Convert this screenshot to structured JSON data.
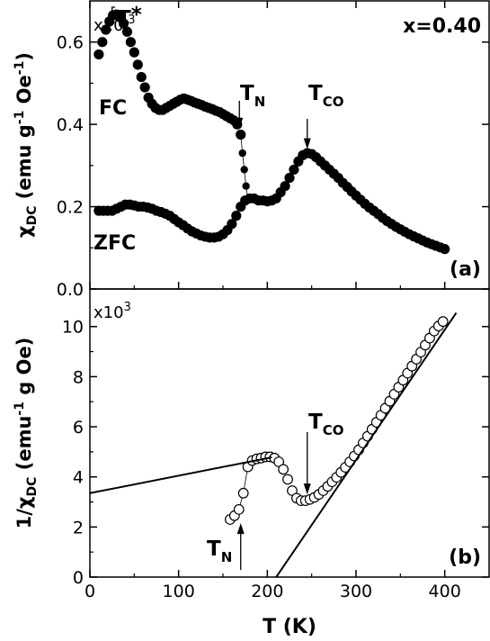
{
  "chart_data": [
    {
      "type": "scatter",
      "panel_label": "(a)",
      "composition": "x=0.40",
      "ylabel": "χDC (emu g-1 Oe-1)",
      "ylabel_parts": {
        "main": "χ",
        "sub": "DC",
        "rest1": " (emu g",
        "sup1": "-1",
        "rest2": " Oe",
        "sup2": "-1",
        "rest3": ")"
      },
      "y_multiplier": "x10-3",
      "y_multiplier_parts": {
        "base": "x10",
        "exp": "-3"
      },
      "xlim": [
        0,
        450
      ],
      "ylim": [
        0.0,
        0.7
      ],
      "yticks": [
        "0.0",
        "0.2",
        "0.4",
        "0.6"
      ],
      "yticks_values": [
        0.0,
        0.2,
        0.4,
        0.6
      ],
      "series": [
        {
          "name": "FC",
          "marker": "filled-circle",
          "x": [
            10,
            14,
            18,
            22,
            26,
            30,
            34,
            38,
            42,
            46,
            50,
            54,
            58,
            62,
            66,
            70,
            74,
            78,
            82,
            86,
            90,
            94,
            98,
            102,
            106,
            110,
            114,
            118,
            122,
            126,
            130,
            134,
            138,
            142,
            146,
            150,
            154,
            158,
            162,
            166,
            170
          ],
          "y": [
            0.57,
            0.6,
            0.63,
            0.65,
            0.665,
            0.667,
            0.66,
            0.645,
            0.625,
            0.6,
            0.575,
            0.545,
            0.515,
            0.49,
            0.465,
            0.45,
            0.44,
            0.435,
            0.435,
            0.44,
            0.445,
            0.45,
            0.455,
            0.46,
            0.463,
            0.46,
            0.457,
            0.453,
            0.45,
            0.447,
            0.443,
            0.44,
            0.437,
            0.433,
            0.43,
            0.425,
            0.42,
            0.415,
            0.41,
            0.4,
            0.375
          ]
        },
        {
          "name": "ZFC",
          "marker": "filled-circle",
          "x": [
            10,
            15,
            20,
            25,
            30,
            35,
            40,
            45,
            50,
            55,
            60,
            65,
            70,
            75,
            80,
            85,
            90,
            95,
            100,
            105,
            110,
            115,
            120,
            125,
            130,
            135,
            140,
            145,
            150,
            155,
            160,
            165,
            170,
            175,
            180,
            185,
            190,
            195,
            200,
            205,
            210,
            215,
            220,
            225,
            230,
            235,
            240,
            245,
            250,
            255,
            260,
            265,
            270,
            275,
            280,
            285,
            290,
            295,
            300,
            305,
            310,
            315,
            320,
            325,
            330,
            335,
            340,
            345,
            350,
            355,
            360,
            365,
            370,
            375,
            380,
            385,
            390,
            395,
            400
          ],
          "y": [
            0.19,
            0.19,
            0.19,
            0.19,
            0.195,
            0.2,
            0.205,
            0.205,
            0.203,
            0.2,
            0.2,
            0.198,
            0.195,
            0.19,
            0.187,
            0.183,
            0.178,
            0.17,
            0.162,
            0.155,
            0.147,
            0.14,
            0.135,
            0.13,
            0.127,
            0.125,
            0.125,
            0.127,
            0.133,
            0.143,
            0.158,
            0.178,
            0.2,
            0.215,
            0.22,
            0.22,
            0.215,
            0.215,
            0.213,
            0.215,
            0.22,
            0.235,
            0.25,
            0.27,
            0.29,
            0.31,
            0.325,
            0.33,
            0.328,
            0.32,
            0.31,
            0.3,
            0.29,
            0.28,
            0.27,
            0.258,
            0.248,
            0.237,
            0.227,
            0.217,
            0.207,
            0.198,
            0.19,
            0.182,
            0.173,
            0.165,
            0.158,
            0.151,
            0.145,
            0.139,
            0.133,
            0.128,
            0.123,
            0.118,
            0.113,
            0.109,
            0.105,
            0.101,
            0.097
          ]
        }
      ],
      "transition_points": {
        "x": [
          170,
          172,
          174,
          176,
          178
        ],
        "y": [
          0.375,
          0.33,
          0.29,
          0.25,
          0.22
        ]
      },
      "annotations": [
        {
          "text": "T*",
          "main": "T",
          "sup": "*",
          "x": 25,
          "y": 0.667
        },
        {
          "text": "TN",
          "main": "T",
          "sub": "N",
          "x": 171,
          "y": 0.375
        },
        {
          "text": "TCO",
          "main": "T",
          "sub": "CO",
          "x": 245,
          "y": 0.33
        }
      ]
    },
    {
      "type": "scatter",
      "panel_label": "(b)",
      "ylabel": "1/χDC (emu-1 g Oe)",
      "ylabel_parts": {
        "main": "1/χ",
        "sub": "DC",
        "rest1": " (emu",
        "sup1": "-1",
        "rest2": " g Oe)"
      },
      "y_multiplier": "x103",
      "y_multiplier_parts": {
        "base": "x10",
        "exp": "3"
      },
      "xlabel": "T (K)",
      "xlim": [
        0,
        450
      ],
      "ylim": [
        0,
        11.5
      ],
      "xticks": [
        "0",
        "100",
        "200",
        "300",
        "400"
      ],
      "xticks_values": [
        0,
        100,
        200,
        300,
        400
      ],
      "yticks": [
        "0",
        "2",
        "4",
        "6",
        "8",
        "10"
      ],
      "yticks_values": [
        0,
        2,
        4,
        6,
        8,
        10
      ],
      "series": [
        {
          "name": "",
          "marker": "open-circle",
          "x": [
            158,
            163,
            168,
            173,
            178,
            183,
            188,
            193,
            198,
            203,
            208,
            213,
            218,
            223,
            228,
            233,
            238,
            243,
            248,
            253,
            258,
            263,
            268,
            273,
            278,
            283,
            288,
            293,
            298,
            303,
            308,
            313,
            318,
            323,
            328,
            333,
            338,
            343,
            348,
            353,
            358,
            363,
            368,
            373,
            378,
            383,
            388,
            393,
            398
          ],
          "y": [
            2.3,
            2.45,
            2.7,
            3.35,
            4.4,
            4.65,
            4.72,
            4.75,
            4.8,
            4.8,
            4.75,
            4.6,
            4.3,
            3.9,
            3.45,
            3.15,
            3.05,
            3.05,
            3.1,
            3.18,
            3.3,
            3.45,
            3.62,
            3.8,
            3.98,
            4.18,
            4.38,
            4.6,
            4.83,
            5.08,
            5.35,
            5.62,
            5.9,
            6.18,
            6.46,
            6.74,
            7.02,
            7.3,
            7.58,
            7.86,
            8.14,
            8.42,
            8.7,
            8.98,
            9.26,
            9.54,
            9.82,
            10.02,
            10.2
          ]
        }
      ],
      "fit_lines": [
        {
          "x": [
            0,
            205
          ],
          "y": [
            3.35,
            4.78
          ]
        },
        {
          "x": [
            210,
            413
          ],
          "y": [
            0,
            10.55
          ]
        }
      ],
      "annotations": [
        {
          "text": "TN",
          "main": "T",
          "sub": "N",
          "x": 170,
          "y": 2.6
        },
        {
          "text": "TCO",
          "main": "T",
          "sub": "CO",
          "x": 245,
          "y": 3.05
        }
      ]
    }
  ]
}
